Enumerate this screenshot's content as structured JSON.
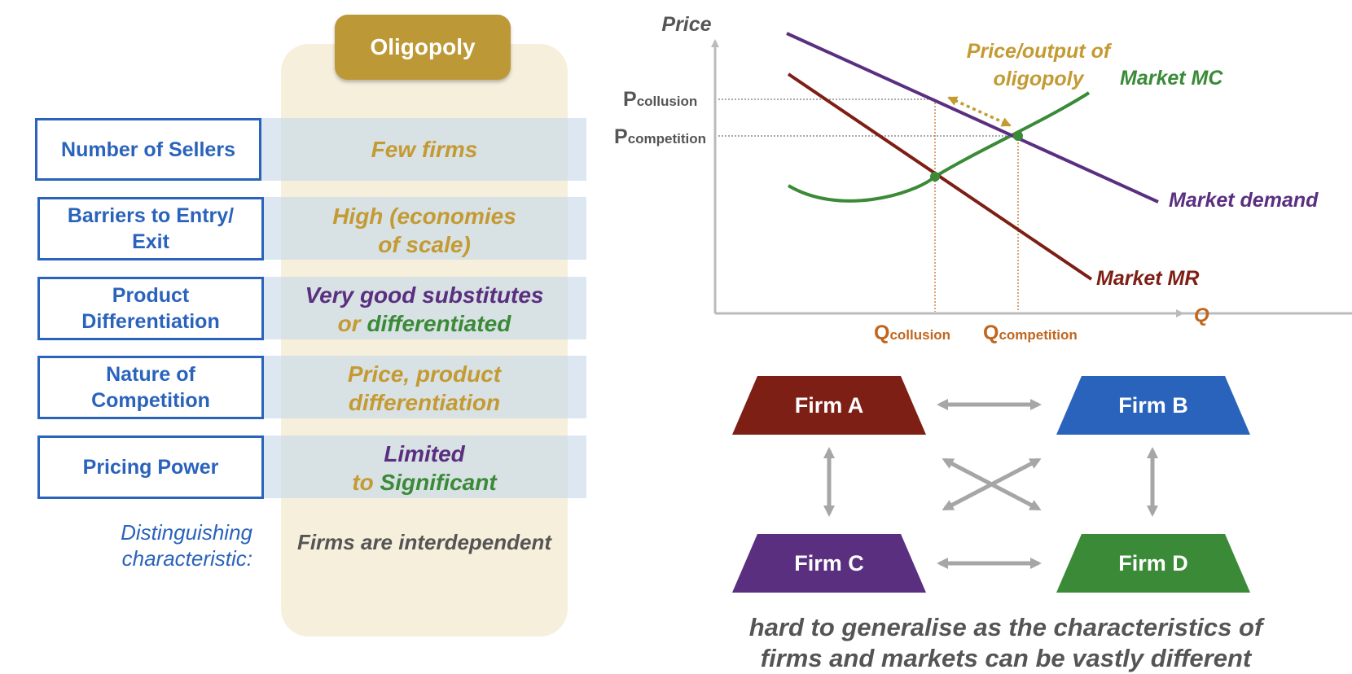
{
  "column": {
    "title": "Oligopoly"
  },
  "rows": [
    {
      "label_lines": [
        "Number of Sellers"
      ],
      "value_lines": [
        [
          {
            "t": "Few firms",
            "c": "gold"
          }
        ]
      ]
    },
    {
      "label_lines": [
        "Barriers to Entry/",
        "Exit"
      ],
      "value_lines": [
        [
          {
            "t": "High (economies",
            "c": "gold"
          }
        ],
        [
          {
            "t": "of scale)",
            "c": "gold"
          }
        ]
      ]
    },
    {
      "label_lines": [
        "Product",
        "Differentiation"
      ],
      "value_lines": [
        [
          {
            "t": "Very good substitutes",
            "c": "purple"
          }
        ],
        [
          {
            "t": "or ",
            "c": "gold"
          },
          {
            "t": "differentiated",
            "c": "green"
          }
        ]
      ]
    },
    {
      "label_lines": [
        "Nature of",
        "Competition"
      ],
      "value_lines": [
        [
          {
            "t": "Price, product",
            "c": "gold"
          }
        ],
        [
          {
            "t": "differentiation",
            "c": "gold"
          }
        ]
      ]
    },
    {
      "label_lines": [
        "Pricing Power"
      ],
      "value_lines": [
        [
          {
            "t": "Limited",
            "c": "purple"
          }
        ],
        [
          {
            "t": "to ",
            "c": "gold"
          },
          {
            "t": "Significant",
            "c": "green"
          }
        ]
      ]
    }
  ],
  "distinguishing": {
    "label_lines": [
      "Distinguishing",
      "characteristic:"
    ],
    "value": "Firms are interdependent"
  },
  "graph": {
    "y_axis_label": "Price",
    "x_axis_label": "Q",
    "p_collusion": {
      "main": "P",
      "sub": "collusion"
    },
    "p_competition": {
      "main": "P",
      "sub": "competition"
    },
    "q_collusion": {
      "main": "Q",
      "sub": "collusion"
    },
    "q_competition": {
      "main": "Q",
      "sub": "competition"
    },
    "annotation_lines": [
      "Price/output of",
      "oligopoly"
    ],
    "curves": {
      "mc": {
        "name": "Market MC",
        "color": "#3a8a38"
      },
      "demand": {
        "name": "Market demand",
        "color": "#5a2f80"
      },
      "mr": {
        "name": "Market MR",
        "color": "#7d1f15"
      }
    },
    "annotation_color": "#c49a33",
    "axis_color": "#bbbbbb",
    "q_label_color": "#c0661f"
  },
  "firms": [
    {
      "name": "Firm A",
      "color": "#7d1f15"
    },
    {
      "name": "Firm B",
      "color": "#2a63bb"
    },
    {
      "name": "Firm C",
      "color": "#5a2f80"
    },
    {
      "name": "Firm D",
      "color": "#3a8a38"
    }
  ],
  "arrow_color": "#a6a6a6",
  "bottom_text_lines": [
    "hard to generalise as the characteristics of",
    "firms and markets can be vastly different"
  ]
}
